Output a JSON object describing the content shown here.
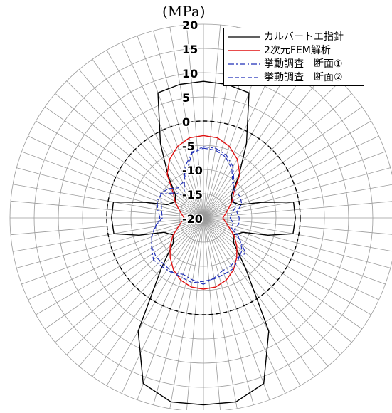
{
  "chart_data": {
    "type": "line",
    "subtype": "polar",
    "title": "",
    "unit_label": "(MPa)",
    "r_axis": {
      "ticks": [
        20,
        15,
        10,
        5,
        0,
        -5,
        -10,
        -15,
        -20
      ],
      "range": [
        -20,
        20
      ],
      "reference_circle_value": 0
    },
    "grid": true,
    "angular_divisions": 72,
    "legend_position": "top-right",
    "series": [
      {
        "name": "カルバートエ指針",
        "color": "#000000",
        "dash": "solid",
        "points": [
          [
            0,
            8.2
          ],
          [
            10,
            8.0
          ],
          [
            20,
            7.5
          ],
          [
            30,
            -2.2
          ],
          [
            40,
            -8.6
          ],
          [
            50,
            -12.4
          ],
          [
            60,
            -13.3
          ],
          [
            70,
            -12.0
          ],
          [
            75,
            -7.6
          ],
          [
            80,
            -1.1
          ],
          [
            90,
            -1.0
          ],
          [
            100,
            -1.2
          ],
          [
            105,
            -6.2
          ],
          [
            110,
            -11.3
          ],
          [
            120,
            -12.9
          ],
          [
            130,
            -11.8
          ],
          [
            140,
            -6.5
          ],
          [
            150,
            7.0
          ],
          [
            160,
            16.4
          ],
          [
            170,
            18.6
          ],
          [
            180,
            18.6
          ],
          [
            190,
            18.6
          ],
          [
            200,
            16.4
          ],
          [
            210,
            7.0
          ],
          [
            220,
            -6.5
          ],
          [
            230,
            -11.8
          ],
          [
            240,
            -12.9
          ],
          [
            250,
            -11.3
          ],
          [
            255,
            -6.2
          ],
          [
            260,
            -1.2
          ],
          [
            270,
            -1.0
          ],
          [
            280,
            -1.1
          ],
          [
            285,
            -7.6
          ],
          [
            290,
            -12.0
          ],
          [
            300,
            -13.3
          ],
          [
            310,
            -12.4
          ],
          [
            320,
            -8.6
          ],
          [
            330,
            -2.2
          ],
          [
            340,
            7.5
          ],
          [
            350,
            8.0
          ]
        ]
      },
      {
        "name": "2次元FEM解析",
        "color": "#e01010",
        "dash": "solid",
        "points": [
          [
            0,
            -3.0
          ],
          [
            10,
            -3.2
          ],
          [
            20,
            -4.3
          ],
          [
            30,
            -6.0
          ],
          [
            40,
            -8.3
          ],
          [
            50,
            -11.8
          ],
          [
            60,
            -13.2
          ],
          [
            70,
            -14.5
          ],
          [
            80,
            -15.4
          ],
          [
            90,
            -16.0
          ],
          [
            100,
            -15.4
          ],
          [
            110,
            -14.4
          ],
          [
            120,
            -12.7
          ],
          [
            130,
            -11.0
          ],
          [
            140,
            -9.3
          ],
          [
            150,
            -7.6
          ],
          [
            160,
            -6.3
          ],
          [
            170,
            -5.5
          ],
          [
            180,
            -5.3
          ],
          [
            190,
            -5.5
          ],
          [
            200,
            -6.3
          ],
          [
            210,
            -7.6
          ],
          [
            220,
            -9.3
          ],
          [
            230,
            -11.0
          ],
          [
            240,
            -12.7
          ],
          [
            250,
            -14.4
          ],
          [
            260,
            -15.4
          ],
          [
            270,
            -16.0
          ],
          [
            280,
            -15.4
          ],
          [
            290,
            -14.5
          ],
          [
            300,
            -13.2
          ],
          [
            310,
            -11.8
          ],
          [
            320,
            -8.3
          ],
          [
            330,
            -6.0
          ],
          [
            340,
            -4.3
          ],
          [
            350,
            -3.2
          ]
        ]
      },
      {
        "name": "挙動調査　断面①",
        "color": "#1f2fb8",
        "dash": "dashdot",
        "points": [
          [
            0,
            -5.3
          ],
          [
            10,
            -5.4
          ],
          [
            20,
            -6.2
          ],
          [
            30,
            -7.8
          ],
          [
            40,
            -10.2
          ],
          [
            50,
            -12.2
          ],
          [
            60,
            -12.9
          ],
          [
            70,
            -12.8
          ],
          [
            80,
            -14.0
          ],
          [
            90,
            -14.5
          ],
          [
            100,
            -13.8
          ],
          [
            110,
            -13.8
          ],
          [
            120,
            -11.5
          ],
          [
            130,
            -8.6
          ],
          [
            140,
            -9.2
          ],
          [
            150,
            -8.6
          ],
          [
            160,
            -8.4
          ],
          [
            170,
            -7.4
          ],
          [
            180,
            -6.3
          ],
          [
            190,
            -7.0
          ],
          [
            200,
            -7.6
          ],
          [
            210,
            -6.9
          ],
          [
            220,
            -6.8
          ],
          [
            230,
            -6.5
          ],
          [
            240,
            -7.6
          ],
          [
            250,
            -8.6
          ],
          [
            260,
            -10.0
          ],
          [
            270,
            -11.0
          ],
          [
            280,
            -10.4
          ],
          [
            290,
            -9.8
          ],
          [
            300,
            -10.0
          ],
          [
            310,
            -12.0
          ],
          [
            320,
            -13.8
          ],
          [
            330,
            -12.1
          ],
          [
            340,
            -8.8
          ],
          [
            350,
            -6.2
          ]
        ]
      },
      {
        "name": "挙動調査　断面②",
        "color": "#1f2fb8",
        "dash": "dashed",
        "points": [
          [
            0,
            -5.6
          ],
          [
            10,
            -5.8
          ],
          [
            20,
            -6.6
          ],
          [
            30,
            -8.3
          ],
          [
            40,
            -10.6
          ],
          [
            50,
            -11.5
          ],
          [
            60,
            -11.2
          ],
          [
            70,
            -11.6
          ],
          [
            80,
            -13.0
          ],
          [
            90,
            -12.6
          ],
          [
            100,
            -12.6
          ],
          [
            110,
            -13.2
          ],
          [
            120,
            -11.3
          ],
          [
            130,
            -9.6
          ],
          [
            140,
            -8.8
          ],
          [
            150,
            -7.8
          ],
          [
            160,
            -7.6
          ],
          [
            170,
            -7.2
          ],
          [
            180,
            -6.9
          ],
          [
            190,
            -6.4
          ],
          [
            200,
            -6.9
          ],
          [
            210,
            -7.1
          ],
          [
            220,
            -7.4
          ],
          [
            230,
            -7.3
          ],
          [
            240,
            -7.7
          ],
          [
            250,
            -8.6
          ],
          [
            260,
            -9.8
          ],
          [
            270,
            -11.5
          ],
          [
            280,
            -11.2
          ],
          [
            290,
            -10.7
          ],
          [
            300,
            -9.8
          ],
          [
            310,
            -10.6
          ],
          [
            320,
            -11.9
          ],
          [
            330,
            -11.5
          ],
          [
            340,
            -9.8
          ],
          [
            350,
            -6.4
          ]
        ]
      }
    ]
  }
}
